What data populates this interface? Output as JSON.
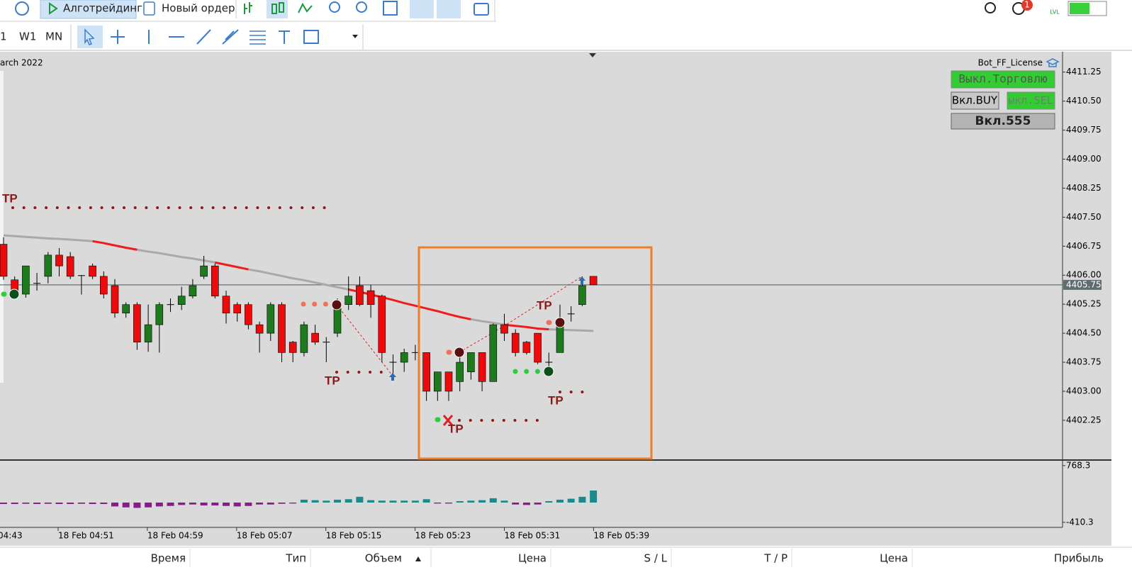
{
  "toolbar": {
    "algo": "Алготрейдинг",
    "new_order": "Новый ордер",
    "timeframes": [
      "1",
      "W1",
      "MN"
    ],
    "notifications": "1",
    "lvl": "LVL"
  },
  "chart": {
    "date_label": "arch 2022",
    "license": "Bot_FF_License",
    "buttons": [
      "Выкл.Торговлю",
      "Вкл.BUY",
      "ыкл.SEL",
      "Вкл.555"
    ],
    "ylim": [
      4401.24,
      4411.74
    ],
    "yticks": [
      4411.25,
      {
        "value": 4410.5,
        "label": "4410.50"
      },
      4409.75,
      {
        "value": 4409,
        "label": "4409.00"
      },
      4408.25,
      {
        "value": 4407.5,
        "label": "4407.50"
      },
      4406.75,
      {
        "value": 4406,
        "label": "4406.00"
      },
      4405.25,
      {
        "value": 4404.5,
        "label": "4404.50"
      },
      4403.75,
      {
        "value": 4403,
        "label": "4403.00"
      },
      4402.25
    ],
    "current_price": 4405.75,
    "open": [
      4406.8,
      4405.88,
      4405.51,
      4405.79,
      4405.97,
      4406.52,
      4406.48,
      4405.99,
      4406.24,
      4405.97,
      4405.73,
      4405.02,
      4405.24,
      4404.27,
      4404.72,
      4405.24,
      4405.24,
      4405.46,
      4405.97,
      4406.24,
      4405.46,
      4405.24,
      4405.24,
      4404.72,
      4404.5,
      4405.24,
      4404.27,
      4404,
      4404.5,
      4404.27,
      4404.5,
      4405.24,
      4405.73,
      4405.6,
      4405.46,
      4403.75,
      4403.75,
      4404,
      4404,
      4403,
      4403.5,
      4403.25,
      4403.5,
      4404,
      4403.25,
      4404.72,
      4404.5,
      4404.27,
      4404.5,
      4403.75,
      4404,
      4405,
      4405.24,
      4405.97
    ],
    "high": [
      4406.98,
      4405.97,
      4406.24,
      4406.06,
      4406.6,
      4406.7,
      4406.6,
      4406,
      4406.3,
      4406.1,
      4405.9,
      4405.3,
      4405.3,
      4405.24,
      4405.3,
      4405.4,
      4405.7,
      4405.9,
      4406.5,
      4406.3,
      4405.6,
      4405.3,
      4405.3,
      4404.8,
      4405.3,
      4405.3,
      4404.3,
      4404.8,
      4404.72,
      4404.4,
      4405.4,
      4405.97,
      4405.97,
      4405.75,
      4405.5,
      4403.95,
      4404.1,
      4404.2,
      4404,
      4403.5,
      4403.5,
      4404.05,
      4404,
      4404,
      4404.75,
      4405,
      4404.6,
      4404.3,
      4404.5,
      4404,
      4405.24,
      4405.2,
      4405.97,
      4405.97
    ],
    "low": [
      4405.88,
      4405.42,
      4405.42,
      4405.6,
      4405.79,
      4405.97,
      4405.9,
      4405.5,
      4405.9,
      4405.4,
      4404.9,
      4404.9,
      4404.07,
      4404.02,
      4404,
      4405.05,
      4405.1,
      4405.4,
      4405.9,
      4405.4,
      4404.75,
      4404.8,
      4404.6,
      4404,
      4404.3,
      4403.75,
      4403.75,
      4403.9,
      4404.2,
      4403.75,
      4404.4,
      4405.1,
      4405.2,
      4404.9,
      4403.75,
      4403.45,
      4403.5,
      4403.8,
      4402.75,
      4402.75,
      4402.75,
      4403,
      4403.3,
      4403,
      4403.25,
      4404.3,
      4403.9,
      4403.95,
      4403.7,
      4403.5,
      4404,
      4404.8,
      4405.2,
      4405.75
    ],
    "close": [
      4405.97,
      4405.51,
      4406.24,
      4405.79,
      4406.52,
      4406.24,
      4405.97,
      4405.99,
      4405.97,
      4405.51,
      4405.02,
      4405.24,
      4404.27,
      4404.72,
      4405.24,
      4405.24,
      4405.46,
      4405.73,
      4406.24,
      4405.46,
      4405.02,
      4405.02,
      4404.72,
      4404.5,
      4405.24,
      4404,
      4404,
      4404.72,
      4404.27,
      4404.27,
      4405.24,
      4405.46,
      4405.24,
      4405.24,
      4404,
      4403.75,
      4404,
      4404,
      4403,
      4403.5,
      4403,
      4403.75,
      4404,
      4403.25,
      4404.72,
      4404.5,
      4404,
      4404,
      4403.75,
      4403.75,
      4404.72,
      4405,
      4405.73,
      4405.75
    ],
    "ma_gray": [
      4407.03,
      4407.01,
      4406.99,
      4406.97,
      4406.95,
      4406.94,
      4406.92,
      4406.9,
      4406.88,
      null,
      null,
      null,
      4406.66,
      4406.61,
      4406.57,
      4406.52,
      4406.47,
      4406.43,
      4406.38,
      4406.33,
      null,
      null,
      4406.15,
      4406.1,
      4406.04,
      4405.98,
      4405.92,
      4405.87,
      4405.81,
      4405.75,
      4405.69,
      4405.63,
      null,
      null,
      null,
      null,
      null,
      null,
      null,
      null,
      null,
      null,
      4404.86,
      4404.81,
      4404.77,
      4404.72,
      null,
      null,
      null,
      4404.6,
      4404.59,
      4404.58,
      4404.57,
      4404.56
    ],
    "ma_red": [
      null,
      null,
      null,
      null,
      null,
      null,
      null,
      null,
      4406.88,
      4406.83,
      4406.77,
      4406.71,
      4406.66,
      null,
      null,
      null,
      null,
      null,
      null,
      4406.33,
      4406.27,
      4406.21,
      4406.15,
      null,
      null,
      null,
      null,
      null,
      null,
      null,
      null,
      4405.63,
      4405.57,
      4405.5,
      4405.43,
      4405.36,
      4405.28,
      4405.21,
      4405.14,
      4405.07,
      4404.99,
      4404.92,
      4404.86,
      null,
      null,
      4404.72,
      4404.69,
      4404.66,
      4404.62,
      4404.6,
      null,
      null,
      null,
      null
    ],
    "tp_labels": [
      "TP",
      "TP",
      "TP",
      "TP",
      "TP"
    ]
  },
  "indicator": {
    "ylim": [
      -515.6,
      869.1
    ],
    "yticks": [
      768.3,
      -410.3
    ],
    "values": [
      -30,
      -30,
      -25,
      -30,
      -25,
      -30,
      -30,
      -25,
      -30,
      -30,
      -80,
      -100,
      -110,
      -100,
      -80,
      -70,
      -50,
      -40,
      -60,
      -60,
      -70,
      -80,
      -70,
      -40,
      -40,
      -25,
      -20,
      60,
      50,
      40,
      60,
      70,
      120,
      50,
      40,
      40,
      40,
      40,
      70,
      -20,
      -20,
      30,
      40,
      50,
      90,
      40,
      -40,
      -50,
      -40,
      30,
      60,
      80,
      120,
      250
    ]
  },
  "time_axis": {
    "labels": [
      "04:43",
      "18 Feb 04:51",
      "18 Feb 04:59",
      "18 Feb 05:07",
      "18 Feb 05:15",
      "18 Feb 05:23",
      "18 Feb 05:31",
      "18 Feb 05:39"
    ]
  },
  "table": {
    "headers": [
      "Время",
      "Тип",
      "Объем",
      "Цена",
      "S / L",
      "T / P",
      "Цена",
      "Прибыль"
    ]
  }
}
